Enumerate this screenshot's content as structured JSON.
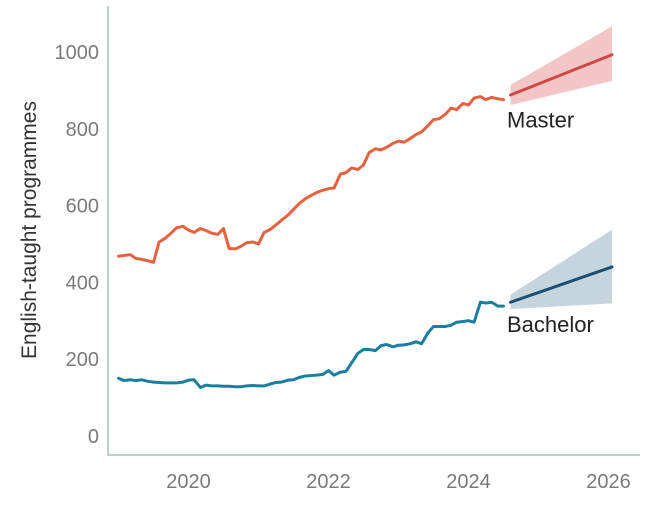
{
  "chart_data": {
    "type": "line",
    "ylabel": "English-taught programmes",
    "xlabel": "",
    "title": "",
    "xlim": [
      2018.85,
      2026.45
    ],
    "ylim": [
      -50,
      1120
    ],
    "x_ticks": [
      2020,
      2022,
      2024,
      2026
    ],
    "x_tick_labels": [
      "2020",
      "2022",
      "2024",
      "2026"
    ],
    "y_ticks": [
      0,
      200,
      400,
      600,
      800,
      1000
    ],
    "y_tick_labels": [
      "0",
      "200",
      "400",
      "600",
      "800",
      "1000"
    ],
    "grid": false,
    "colors": {
      "master": "#e8613f",
      "master_forecast": "#cc4a43",
      "master_band": "#f2c6c6",
      "bachelor": "#1a7ea1",
      "bachelor_forecast": "#1c4e73",
      "bachelor_band": "#c5d5de"
    },
    "series": [
      {
        "name": "Master",
        "x": [
          2019.0,
          2019.08,
          2019.17,
          2019.25,
          2019.33,
          2019.42,
          2019.5,
          2019.58,
          2019.67,
          2019.75,
          2019.83,
          2019.92,
          2020.0,
          2020.08,
          2020.17,
          2020.25,
          2020.33,
          2020.42,
          2020.5,
          2020.58,
          2020.67,
          2020.75,
          2020.83,
          2020.92,
          2021.0,
          2021.08,
          2021.17,
          2021.25,
          2021.33,
          2021.42,
          2021.5,
          2021.58,
          2021.67,
          2021.75,
          2021.83,
          2021.92,
          2022.0,
          2022.08,
          2022.17,
          2022.25,
          2022.33,
          2022.42,
          2022.5,
          2022.58,
          2022.67,
          2022.75,
          2022.83,
          2022.92,
          2023.0,
          2023.08,
          2023.17,
          2023.25,
          2023.33,
          2023.42,
          2023.5,
          2023.58,
          2023.67,
          2023.75,
          2023.83,
          2023.92,
          2024.0,
          2024.08,
          2024.17,
          2024.25,
          2024.33,
          2024.42,
          2024.5
        ],
        "values": [
          468,
          470,
          472,
          462,
          460,
          456,
          452,
          505,
          515,
          528,
          542,
          546,
          536,
          530,
          540,
          535,
          528,
          525,
          540,
          488,
          487,
          494,
          503,
          505,
          500,
          530,
          538,
          550,
          562,
          575,
          590,
          605,
          618,
          626,
          634,
          640,
          644,
          646,
          682,
          686,
          698,
          694,
          706,
          738,
          748,
          745,
          752,
          762,
          768,
          765,
          775,
          785,
          792,
          808,
          824,
          826,
          838,
          854,
          850,
          866,
          862,
          880,
          884,
          876,
          882,
          878,
          876
        ]
      },
      {
        "name": "Bachelor",
        "x": [
          2019.0,
          2019.08,
          2019.17,
          2019.25,
          2019.33,
          2019.42,
          2019.5,
          2019.58,
          2019.67,
          2019.75,
          2019.83,
          2019.92,
          2020.0,
          2020.08,
          2020.17,
          2020.25,
          2020.33,
          2020.42,
          2020.5,
          2020.58,
          2020.67,
          2020.75,
          2020.83,
          2020.92,
          2021.0,
          2021.08,
          2021.17,
          2021.25,
          2021.33,
          2021.42,
          2021.5,
          2021.58,
          2021.67,
          2021.75,
          2021.83,
          2021.92,
          2022.0,
          2022.08,
          2022.17,
          2022.25,
          2022.33,
          2022.42,
          2022.5,
          2022.58,
          2022.67,
          2022.75,
          2022.83,
          2022.92,
          2023.0,
          2023.08,
          2023.17,
          2023.25,
          2023.33,
          2023.42,
          2023.5,
          2023.58,
          2023.67,
          2023.75,
          2023.83,
          2023.92,
          2024.0,
          2024.08,
          2024.17,
          2024.25,
          2024.33,
          2024.42,
          2024.5
        ],
        "values": [
          150,
          144,
          146,
          144,
          146,
          142,
          140,
          139,
          138,
          138,
          138,
          140,
          145,
          146,
          126,
          132,
          130,
          130,
          129,
          129,
          128,
          128,
          130,
          131,
          130,
          130,
          135,
          139,
          140,
          145,
          146,
          152,
          156,
          157,
          158,
          160,
          170,
          158,
          166,
          168,
          190,
          215,
          225,
          225,
          222,
          235,
          238,
          232,
          236,
          237,
          240,
          245,
          240,
          268,
          285,
          285,
          285,
          288,
          296,
          298,
          300,
          296,
          348,
          346,
          348,
          338,
          338
        ]
      },
      {
        "name": "Master forecast",
        "x": [
          2024.6,
          2026.05
        ],
        "values": [
          888,
          993
        ],
        "lower": [
          862,
          925
        ],
        "upper": [
          914,
          1067
        ]
      },
      {
        "name": "Bachelor forecast",
        "x": [
          2024.6,
          2026.05
        ],
        "values": [
          348,
          440
        ],
        "lower": [
          330,
          345
        ],
        "upper": [
          368,
          537
        ]
      }
    ],
    "annotations": [
      {
        "text": "Master",
        "x": 2024.55,
        "y": 803
      },
      {
        "text": "Bachelor",
        "x": 2024.55,
        "y": 270
      }
    ]
  }
}
